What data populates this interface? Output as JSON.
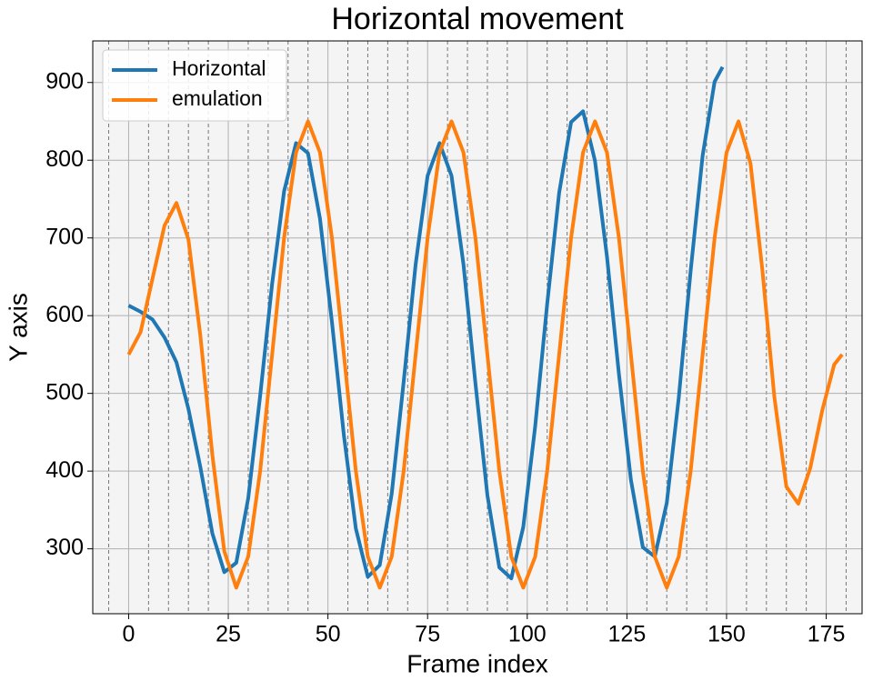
{
  "chart_data": {
    "type": "line",
    "title": "Horizontal movement",
    "x_label": "Frame index",
    "y_label": "Y axis",
    "xlim": [
      -9,
      184
    ],
    "ylim": [
      216.5,
      953.5
    ],
    "xticks": [
      0,
      25,
      50,
      75,
      100,
      125,
      150,
      175
    ],
    "yticks": [
      300,
      400,
      500,
      600,
      700,
      800,
      900
    ],
    "grid": true,
    "x_minor_grid_step": 5,
    "legend": "upper left",
    "series": [
      {
        "name": "Horizontal",
        "color": "#1f77b4",
        "x": [
          0,
          3,
          6,
          9,
          12,
          15,
          18,
          21,
          24,
          27,
          30,
          33,
          36,
          39,
          42,
          45,
          48,
          51,
          54,
          57,
          60,
          63,
          66,
          69,
          72,
          75,
          78,
          81,
          84,
          87,
          90,
          93,
          96,
          99,
          102,
          105,
          108,
          111,
          114,
          117,
          120,
          123,
          126,
          129,
          132,
          135,
          138,
          141,
          144,
          147,
          149
        ],
        "values": [
          613,
          605,
          595,
          572,
          540,
          480,
          405,
          320,
          270,
          282,
          365,
          497,
          641,
          760,
          822,
          809,
          725,
          592,
          446,
          326,
          264,
          279,
          371,
          515,
          666,
          780,
          822,
          780,
          666,
          513,
          369,
          276,
          262,
          328,
          458,
          615,
          758,
          849,
          863,
          799,
          676,
          525,
          389,
          302,
          290,
          359,
          494,
          658,
          806,
          901,
          920
        ]
      },
      {
        "name": "emulation",
        "color": "#ff7f0e",
        "x": [
          0,
          3,
          6,
          9,
          12,
          15,
          18,
          21,
          24,
          27,
          30,
          33,
          36,
          39,
          42,
          45,
          48,
          51,
          54,
          57,
          60,
          63,
          66,
          69,
          72,
          75,
          78,
          81,
          84,
          87,
          90,
          93,
          96,
          99,
          102,
          105,
          108,
          111,
          114,
          117,
          120,
          123,
          126,
          129,
          132,
          135,
          138,
          141,
          144,
          147,
          150,
          153,
          156,
          159,
          162,
          165,
          168,
          171,
          174,
          177,
          179
        ],
        "values": [
          550,
          579,
          648,
          716,
          745,
          698,
          574,
          421,
          297,
          250,
          290,
          400,
          550,
          700,
          810,
          850,
          810,
          700,
          550,
          400,
          290,
          250,
          290,
          400,
          550,
          700,
          810,
          850,
          810,
          700,
          550,
          400,
          290,
          250,
          290,
          400,
          550,
          700,
          810,
          850,
          810,
          700,
          550,
          400,
          290,
          250,
          290,
          400,
          550,
          700,
          810,
          850,
          796,
          658,
          495,
          380,
          358,
          404,
          478,
          537,
          550
        ]
      }
    ]
  }
}
